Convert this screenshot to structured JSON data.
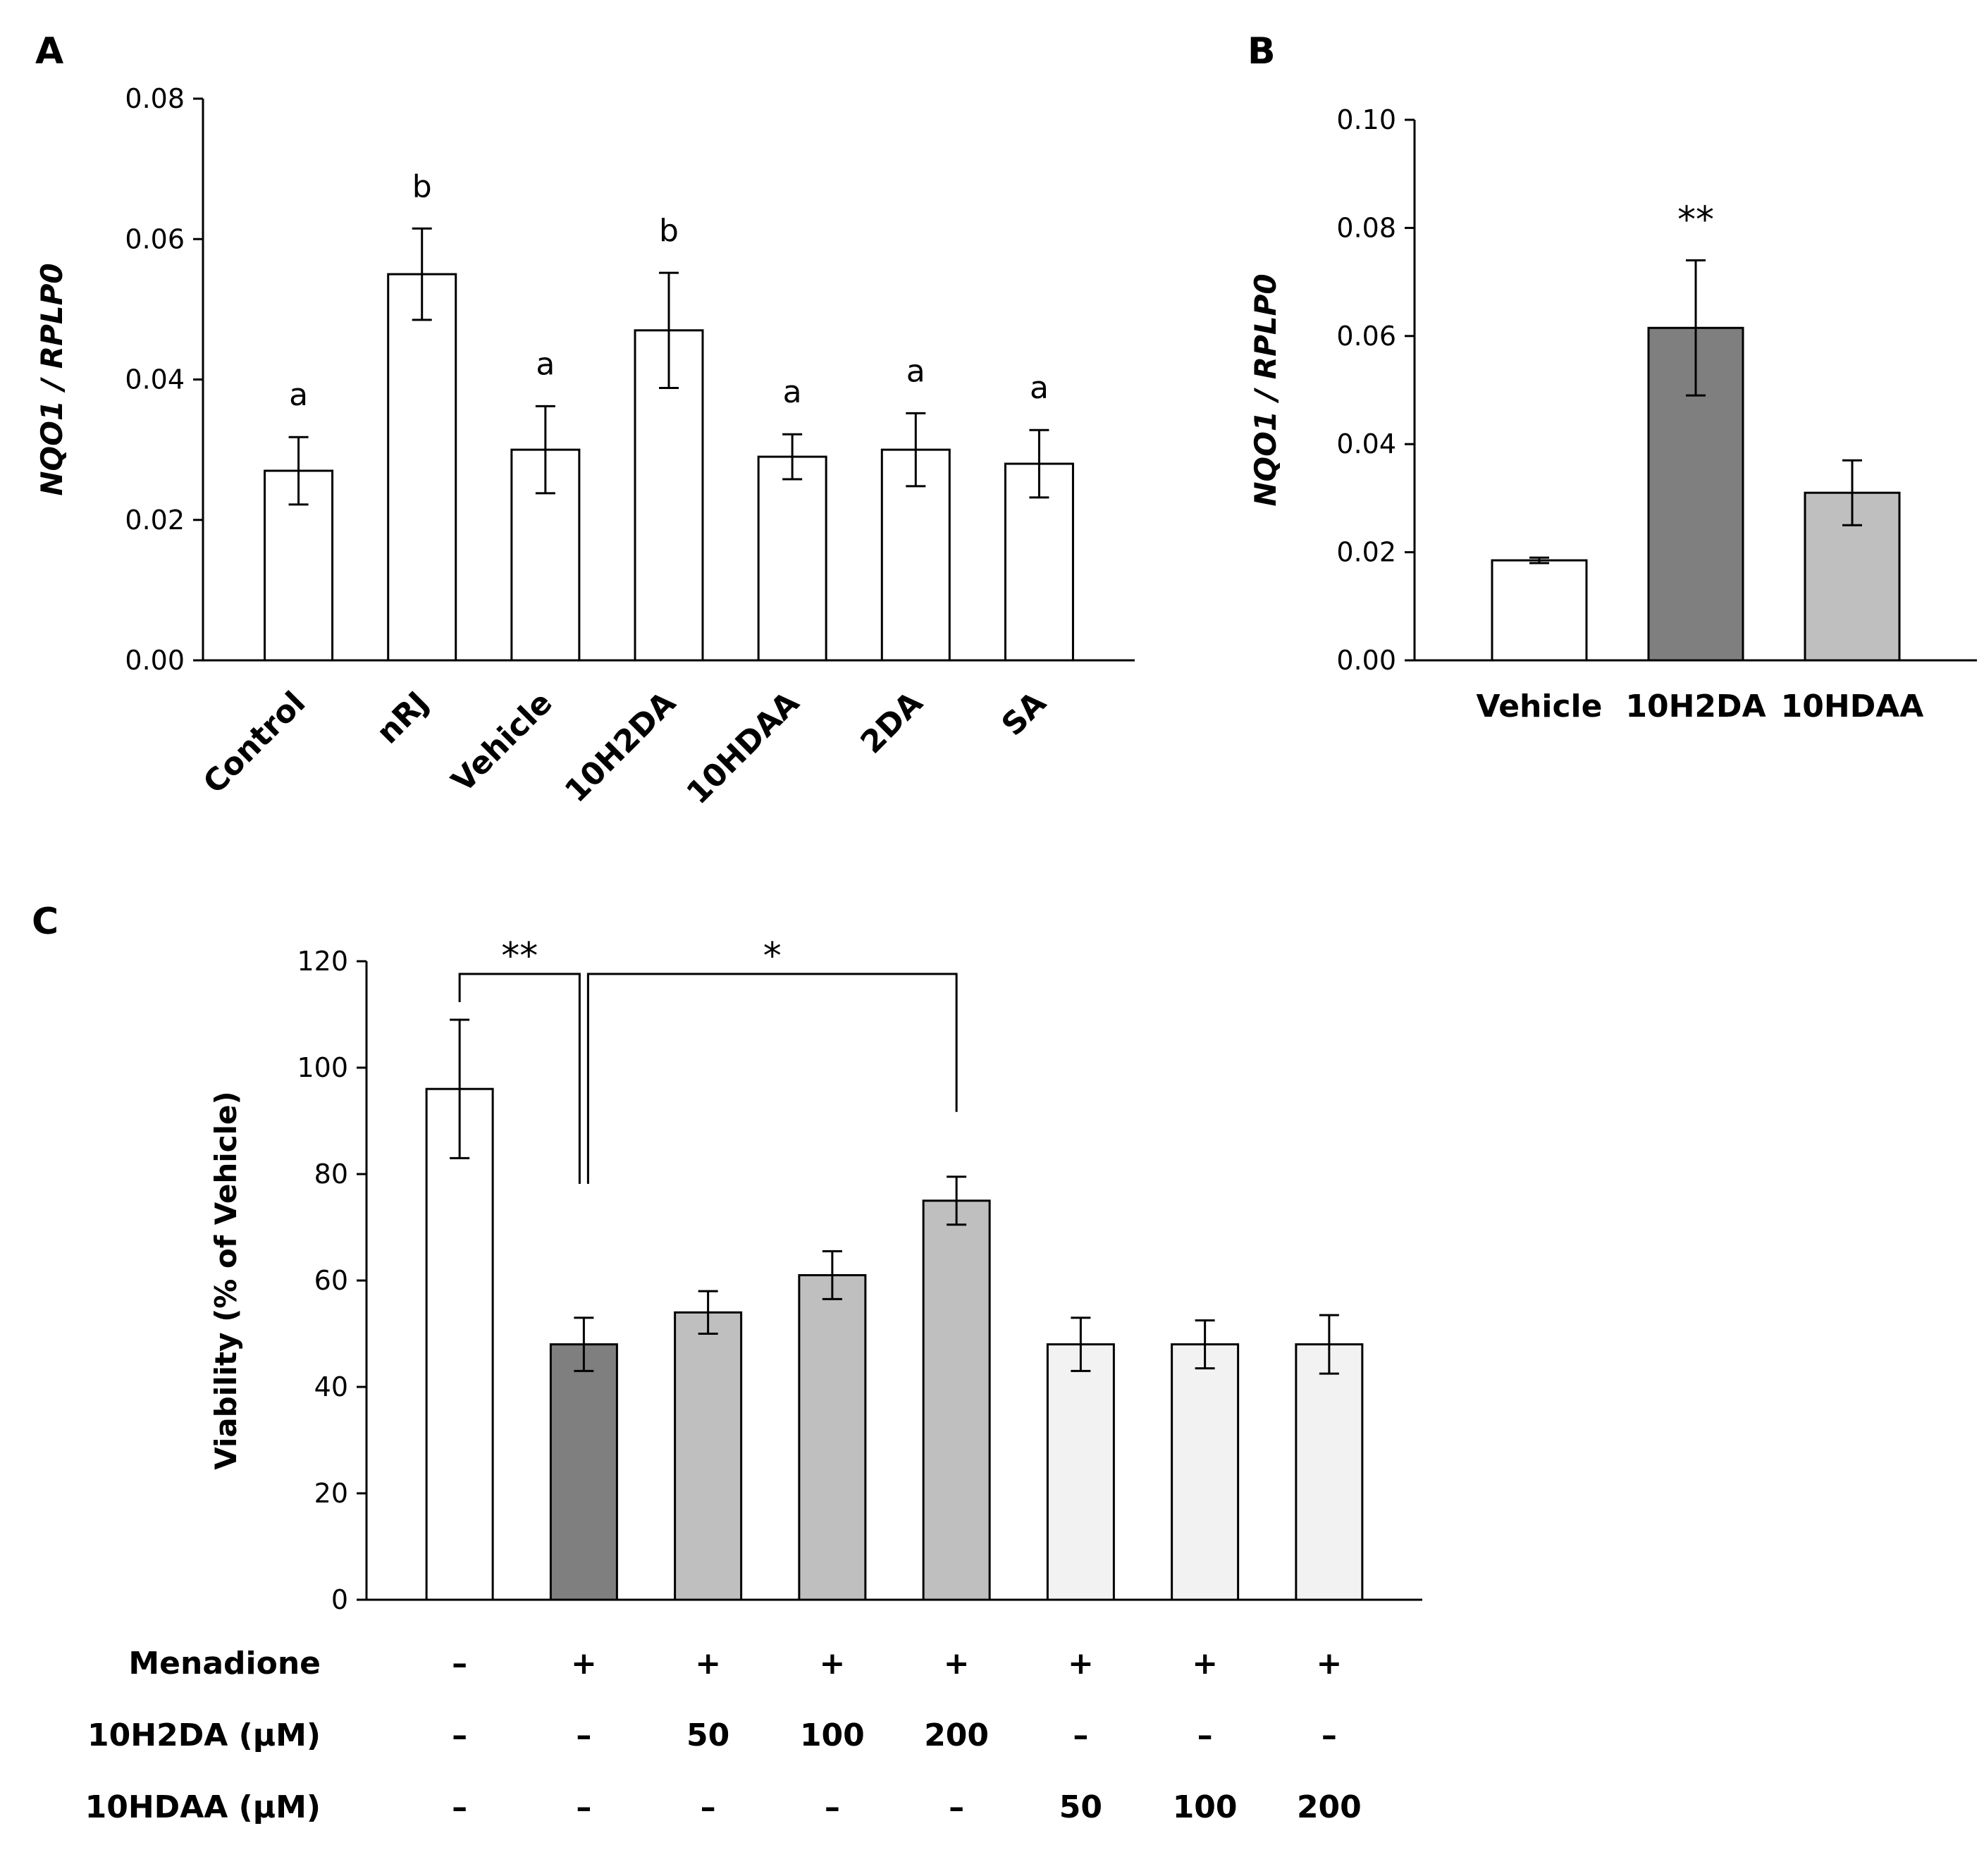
{
  "chart_data": [
    {
      "panel": "A",
      "type": "bar",
      "title": "",
      "xlabel": "",
      "ylabel": "NQO1 / RPLP0",
      "ylim": [
        0,
        0.08
      ],
      "yticks": [
        "0.00",
        "0.02",
        "0.04",
        "0.06",
        "0.08"
      ],
      "categories": [
        "Control",
        "nRJ",
        "Vehicle",
        "10H2DA",
        "10HDAA",
        "2DA",
        "SA"
      ],
      "values": [
        0.027,
        0.055,
        0.03,
        0.047,
        0.029,
        0.03,
        0.028
      ],
      "errors": [
        0.0048,
        0.0065,
        0.0062,
        0.0082,
        0.0032,
        0.0052,
        0.0048
      ],
      "labels": [
        "a",
        "b",
        "a",
        "b",
        "a",
        "a",
        "a"
      ],
      "colors": [
        "#ffffff",
        "#ffffff",
        "#ffffff",
        "#ffffff",
        "#ffffff",
        "#ffffff",
        "#ffffff"
      ]
    },
    {
      "panel": "B",
      "type": "bar",
      "title": "",
      "xlabel": "",
      "ylabel": "NQO1 / RPLP0",
      "ylim": [
        0,
        0.1
      ],
      "yticks": [
        "0.00",
        "0.02",
        "0.04",
        "0.06",
        "0.08",
        "0.10"
      ],
      "categories": [
        "Vehicle",
        "10H2DA",
        "10HDAA"
      ],
      "values": [
        0.0185,
        0.0615,
        0.031
      ],
      "errors": [
        0.0005,
        0.0125,
        0.006
      ],
      "labels": [
        "",
        "**",
        ""
      ],
      "colors": [
        "#ffffff",
        "#7f7f7f",
        "#bfbfbf"
      ]
    },
    {
      "panel": "C",
      "type": "bar",
      "title": "",
      "xlabel": "",
      "ylabel": "Viability (% of Vehicle)",
      "ylim": [
        0,
        120
      ],
      "yticks": [
        "0",
        "20",
        "40",
        "60",
        "80",
        "100",
        "120"
      ],
      "values": [
        96,
        48,
        54,
        61,
        75,
        48,
        48,
        48
      ],
      "errors": [
        13,
        5,
        4,
        4.5,
        4.5,
        5,
        4.5,
        5.5
      ],
      "colors": [
        "#ffffff",
        "#7f7f7f",
        "#bfbfbf",
        "#bfbfbf",
        "#bfbfbf",
        "#f2f2f2",
        "#f2f2f2",
        "#f2f2f2"
      ],
      "brackets": [
        {
          "from": 0,
          "to": 1,
          "label": "**"
        },
        {
          "from": 1,
          "to": 4,
          "label": "*"
        }
      ],
      "conditions": [
        {
          "label": "Menadione",
          "cells": [
            "–",
            "+",
            "+",
            "+",
            "+",
            "+",
            "+",
            "+"
          ]
        },
        {
          "label": "10H2DA (µM)",
          "cells": [
            "–",
            "–",
            "50",
            "100",
            "200",
            "–",
            "–",
            "–"
          ]
        },
        {
          "label": "10HDAA (µM)",
          "cells": [
            "–",
            "–",
            "–",
            "–",
            "–",
            "50",
            "100",
            "200"
          ]
        }
      ]
    }
  ]
}
